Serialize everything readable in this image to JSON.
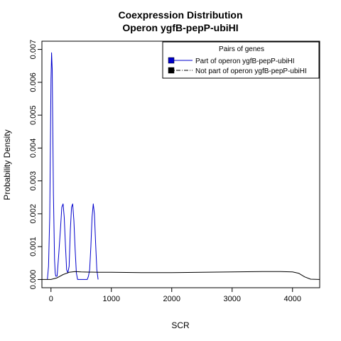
{
  "chart_data": {
    "type": "line",
    "title": "Coexpression Distribution",
    "subtitle": "Operon ygfB-pepP-ubiHI",
    "xlabel": "SCR",
    "ylabel": "Probability Density",
    "xlim": [
      -150,
      4450
    ],
    "ylim": [
      -0.00025,
      0.00725
    ],
    "xticks": [
      0,
      1000,
      2000,
      3000,
      4000
    ],
    "yticks": [
      0.0,
      0.001,
      0.002,
      0.003,
      0.004,
      0.005,
      0.006,
      0.007
    ],
    "ytick_labels": [
      "0.000",
      "0.001",
      "0.002",
      "0.003",
      "0.004",
      "0.005",
      "0.006",
      "0.007"
    ],
    "legend": {
      "title": "Pairs of genes",
      "position": "top-right",
      "entries": [
        "Part of operon ygfB-pepP-ubiHI",
        "Not part of operon ygfB-pepP-ubiHI"
      ]
    },
    "series": [
      {
        "name": "Part of operon ygfB-pepP-ubiHI",
        "color": "#0000cc",
        "style": "solid",
        "x": [
          -60,
          -40,
          -20,
          -10,
          0,
          10,
          20,
          30,
          40,
          60,
          70,
          80,
          100,
          110,
          130,
          160,
          180,
          200,
          220,
          240,
          260,
          280,
          300,
          320,
          340,
          360,
          380,
          400,
          420,
          440,
          480,
          520,
          560,
          600,
          620,
          640,
          660,
          680,
          700,
          720,
          740,
          760,
          780
        ],
        "y": [
          0.0,
          0.0004,
          0.0019,
          0.004,
          0.0061,
          0.0069,
          0.0064,
          0.0046,
          0.0026,
          0.0006,
          0.0002,
          0.0001,
          0.0001,
          0.0003,
          0.0008,
          0.0016,
          0.0022,
          0.0023,
          0.0019,
          0.001,
          0.0003,
          0.0002,
          0.0004,
          0.0015,
          0.0022,
          0.0023,
          0.0018,
          0.0009,
          0.0002,
          0.0,
          0.0,
          0.0,
          0.0,
          0.0,
          0.0001,
          0.0003,
          0.001,
          0.0019,
          0.0023,
          0.002,
          0.0011,
          0.0003,
          0.0
        ]
      },
      {
        "name": "Not part of operon ygfB-pepP-ubiHI",
        "color": "#000000",
        "style": "solid",
        "x": [
          -150,
          -50,
          0,
          100,
          200,
          300,
          400,
          500,
          800,
          1000,
          1500,
          2000,
          2500,
          3000,
          3500,
          3800,
          4000,
          4100,
          4200,
          4300,
          4450
        ],
        "y": [
          0.0,
          0.0,
          0.0,
          5e-05,
          0.00015,
          0.00022,
          0.00024,
          0.00023,
          0.00022,
          0.00022,
          0.00021,
          0.00021,
          0.00022,
          0.00023,
          0.00024,
          0.00024,
          0.00023,
          0.00019,
          8e-05,
          1e-05,
          0.0
        ]
      }
    ],
    "grid": false
  }
}
